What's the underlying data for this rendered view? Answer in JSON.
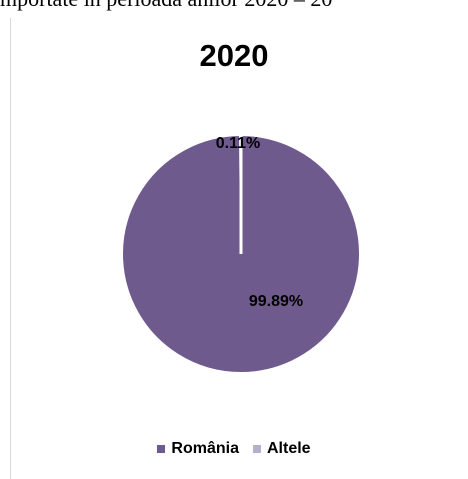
{
  "document": {
    "visible_text": "mportate în perioada anilor 2020 – 20"
  },
  "chart_data": {
    "type": "pie",
    "title": "2020",
    "slices": [
      {
        "name": "România",
        "value": 99.89,
        "label": "99.89%",
        "color": "#6f5a8e"
      },
      {
        "name": "Altele",
        "value": 0.11,
        "label": "0.11%",
        "color": "#b7aed0"
      }
    ],
    "legend_position": "bottom"
  }
}
